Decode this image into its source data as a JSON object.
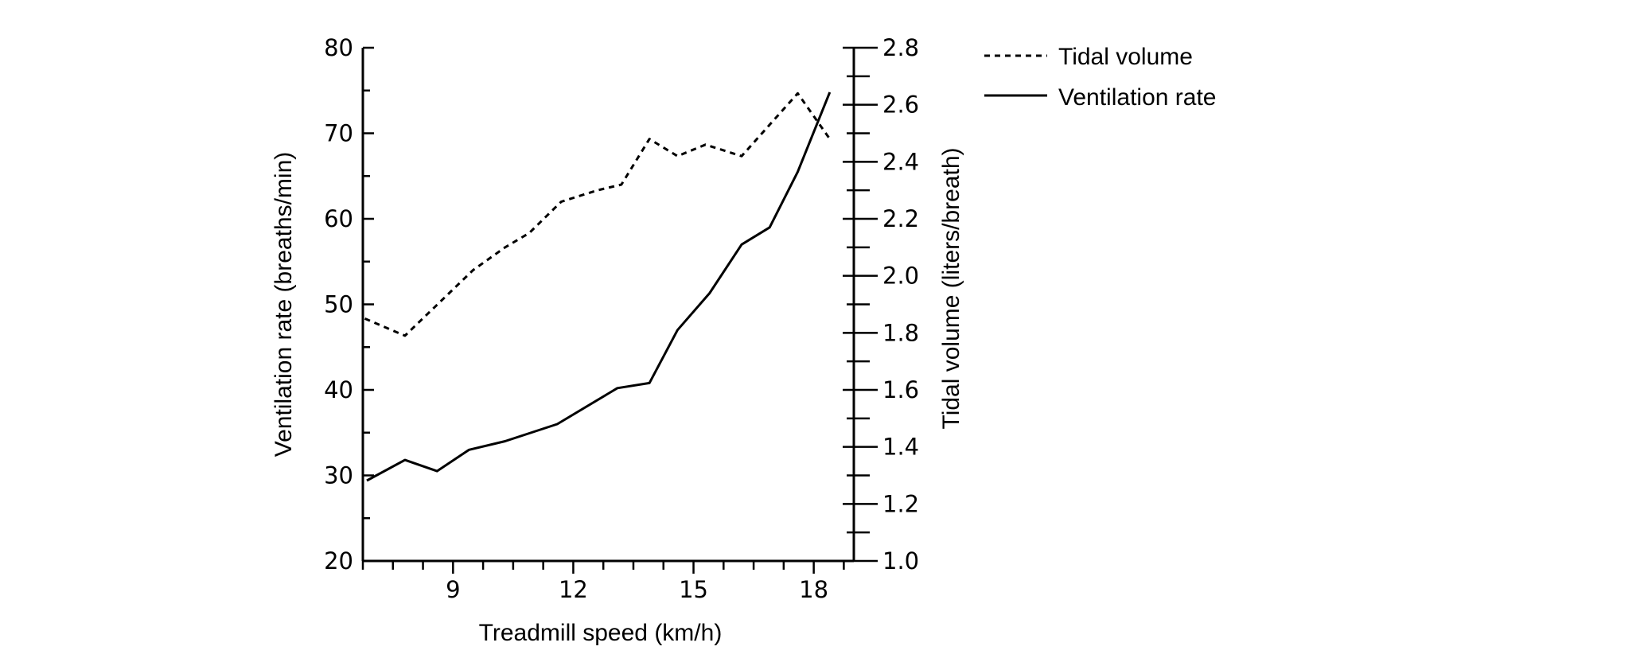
{
  "chart_data": {
    "type": "line",
    "xlabel": "Treadmill speed (km/h)",
    "ylabel_left": "Ventilation rate (breaths/min)",
    "ylabel_right": "Tidal volume (liters/breath)",
    "x_ticks": [
      9,
      12,
      15,
      18
    ],
    "x_minor_step": 0.75,
    "xlim": [
      6.75,
      19.0
    ],
    "ylim_left": [
      20,
      80
    ],
    "y_left_ticks": [
      20,
      30,
      40,
      50,
      60,
      70,
      80
    ],
    "y_left_minor_step": 5,
    "ylim_right": [
      1.0,
      2.8
    ],
    "y_right_ticks": [
      "1.0",
      "1.2",
      "1.4",
      "1.6",
      "1.8",
      "2.0",
      "2.2",
      "2.4",
      "2.6",
      "2.8"
    ],
    "y_right_minor_step": 0.1,
    "grid": false,
    "legend_position": "top-right-outside",
    "series": [
      {
        "name": "Tidal volume",
        "axis": "right",
        "style": "dashed",
        "color": "#000000",
        "points": [
          [
            6.8,
            1.85
          ],
          [
            7.8,
            1.79
          ],
          [
            9.5,
            2.02
          ],
          [
            10.3,
            2.1
          ],
          [
            10.9,
            2.15
          ],
          [
            11.7,
            2.26
          ],
          [
            12.6,
            2.3
          ],
          [
            13.2,
            2.32
          ],
          [
            13.9,
            2.48
          ],
          [
            14.6,
            2.42
          ],
          [
            15.3,
            2.46
          ],
          [
            16.2,
            2.42
          ],
          [
            16.9,
            2.53
          ],
          [
            17.6,
            2.64
          ],
          [
            18.4,
            2.48
          ]
        ]
      },
      {
        "name": "Ventilation rate",
        "axis": "left",
        "style": "solid",
        "color": "#000000",
        "points": [
          [
            6.85,
            29.4
          ],
          [
            7.8,
            31.8
          ],
          [
            8.6,
            30.5
          ],
          [
            9.4,
            33.0
          ],
          [
            10.3,
            34.0
          ],
          [
            11.6,
            36.0
          ],
          [
            13.1,
            40.2
          ],
          [
            13.9,
            40.8
          ],
          [
            14.6,
            47.0
          ],
          [
            15.4,
            51.3
          ],
          [
            16.2,
            57.0
          ],
          [
            16.9,
            59.0
          ],
          [
            17.6,
            65.5
          ],
          [
            18.4,
            74.8
          ]
        ]
      }
    ]
  }
}
